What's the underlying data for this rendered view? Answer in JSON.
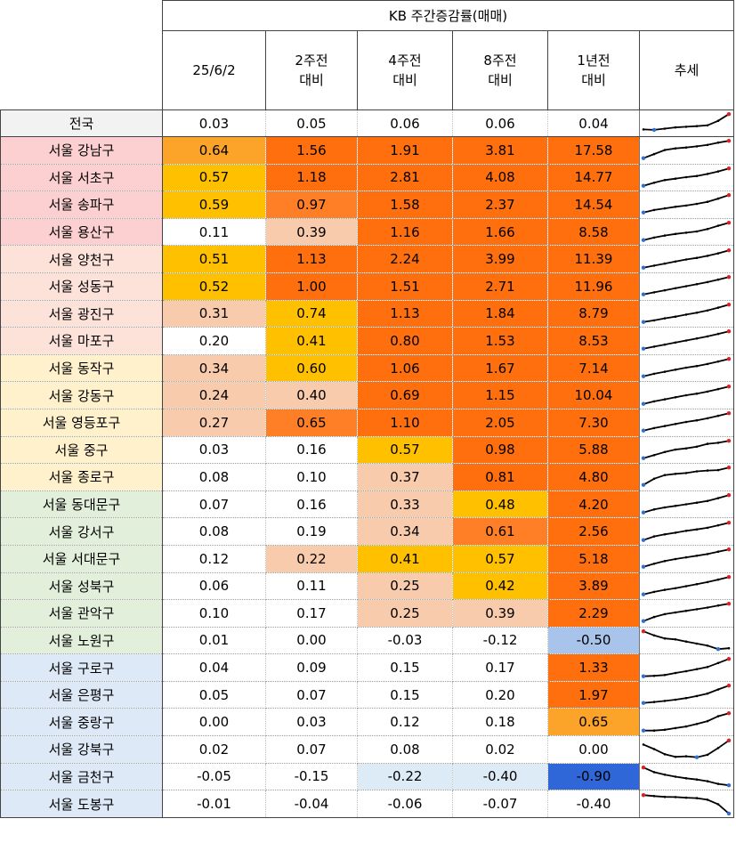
{
  "header": {
    "group_title": "KB 주간증감률(매매)",
    "columns": [
      {
        "line1": "25/6/2",
        "line2": ""
      },
      {
        "line1": "2주전",
        "line2": "대비"
      },
      {
        "line1": "4주전",
        "line2": "대비"
      },
      {
        "line1": "8주전",
        "line2": "대비"
      },
      {
        "line1": "1년전",
        "line2": "대비"
      },
      {
        "line1": "추세",
        "line2": ""
      }
    ]
  },
  "colors": {
    "group_red": "#fcd0d0",
    "group_pink": "#fde2da",
    "group_yellow": "#fff1cc",
    "group_green": "#e2efda",
    "group_blue": "#dde9f7",
    "national": "#f2f2f2",
    "sparkline": "#000000",
    "sparkline_max": "#e02020",
    "sparkline_min": "#2f6fd8"
  },
  "rows": [
    {
      "name": "전국",
      "group": "national",
      "values": [
        "0.03",
        "0.05",
        "0.06",
        "0.06",
        "0.04"
      ],
      "shade": [
        "c0",
        "c0",
        "c0",
        "c0",
        "c0"
      ],
      "trend": [
        0.2,
        0.18,
        0.24,
        0.3,
        0.33,
        0.36,
        0.4,
        0.62,
        0.95
      ]
    },
    {
      "name": "서울 강남구",
      "group": "red",
      "values": [
        "0.64",
        "1.56",
        "1.91",
        "3.81",
        "17.58"
      ],
      "shade": [
        "c3",
        "c5",
        "c5",
        "c5",
        "c5"
      ],
      "trend": [
        0.1,
        0.3,
        0.5,
        0.58,
        0.62,
        0.68,
        0.75,
        0.86,
        0.95
      ]
    },
    {
      "name": "서울 서초구",
      "group": "red",
      "values": [
        "0.57",
        "1.18",
        "2.81",
        "4.08",
        "14.77"
      ],
      "shade": [
        "c2",
        "c5",
        "c5",
        "c5",
        "c5"
      ],
      "trend": [
        0.1,
        0.25,
        0.38,
        0.45,
        0.52,
        0.58,
        0.68,
        0.8,
        0.95
      ]
    },
    {
      "name": "서울 송파구",
      "group": "red",
      "values": [
        "0.59",
        "0.97",
        "1.58",
        "2.37",
        "14.54"
      ],
      "shade": [
        "c2",
        "c4",
        "c5",
        "c5",
        "c5"
      ],
      "trend": [
        0.1,
        0.22,
        0.3,
        0.38,
        0.44,
        0.52,
        0.62,
        0.78,
        0.95
      ]
    },
    {
      "name": "서울 용산구",
      "group": "red",
      "values": [
        "0.11",
        "0.39",
        "1.16",
        "1.66",
        "8.58"
      ],
      "shade": [
        "c0",
        "c1",
        "c5",
        "c5",
        "c5"
      ],
      "trend": [
        0.1,
        0.22,
        0.32,
        0.4,
        0.46,
        0.52,
        0.64,
        0.8,
        0.95
      ]
    },
    {
      "name": "서울 양천구",
      "group": "pink",
      "values": [
        "0.51",
        "1.13",
        "2.24",
        "3.99",
        "11.39"
      ],
      "shade": [
        "c2",
        "c5",
        "c5",
        "c5",
        "c5"
      ],
      "trend": [
        0.1,
        0.2,
        0.3,
        0.4,
        0.5,
        0.58,
        0.68,
        0.8,
        0.95
      ]
    },
    {
      "name": "서울 성동구",
      "group": "pink",
      "values": [
        "0.52",
        "1.00",
        "1.51",
        "2.71",
        "11.96"
      ],
      "shade": [
        "c2",
        "c5",
        "c5",
        "c5",
        "c5"
      ],
      "trend": [
        0.1,
        0.2,
        0.3,
        0.4,
        0.5,
        0.6,
        0.7,
        0.82,
        0.95
      ]
    },
    {
      "name": "서울 광진구",
      "group": "pink",
      "values": [
        "0.31",
        "0.74",
        "1.13",
        "1.84",
        "8.79"
      ],
      "shade": [
        "c1",
        "c2",
        "c5",
        "c5",
        "c5"
      ],
      "trend": [
        0.1,
        0.18,
        0.28,
        0.36,
        0.46,
        0.55,
        0.66,
        0.8,
        0.95
      ]
    },
    {
      "name": "서울 마포구",
      "group": "pink",
      "values": [
        "0.20",
        "0.41",
        "0.80",
        "1.53",
        "8.53"
      ],
      "shade": [
        "c0",
        "c2",
        "c5",
        "c5",
        "c5"
      ],
      "trend": [
        0.1,
        0.2,
        0.3,
        0.4,
        0.5,
        0.6,
        0.7,
        0.82,
        0.95
      ]
    },
    {
      "name": "서울 동작구",
      "group": "yellow",
      "values": [
        "0.34",
        "0.60",
        "1.06",
        "1.67",
        "7.14"
      ],
      "shade": [
        "c1",
        "c2",
        "c5",
        "c5",
        "c5"
      ],
      "trend": [
        0.1,
        0.22,
        0.32,
        0.42,
        0.52,
        0.6,
        0.7,
        0.82,
        0.95
      ]
    },
    {
      "name": "서울 강동구",
      "group": "yellow",
      "values": [
        "0.24",
        "0.40",
        "0.69",
        "1.15",
        "10.04"
      ],
      "shade": [
        "c1",
        "c1",
        "c5",
        "c5",
        "c5"
      ],
      "trend": [
        0.1,
        0.22,
        0.32,
        0.42,
        0.52,
        0.6,
        0.7,
        0.82,
        0.95
      ]
    },
    {
      "name": "서울 영등포구",
      "group": "yellow",
      "values": [
        "0.27",
        "0.65",
        "1.10",
        "2.05",
        "7.30"
      ],
      "shade": [
        "c1",
        "c4",
        "c5",
        "c5",
        "c5"
      ],
      "trend": [
        0.1,
        0.22,
        0.32,
        0.42,
        0.52,
        0.6,
        0.7,
        0.82,
        0.95
      ]
    },
    {
      "name": "서울 중구",
      "group": "yellow",
      "values": [
        "0.03",
        "0.16",
        "0.57",
        "0.98",
        "5.88"
      ],
      "shade": [
        "c0",
        "c0",
        "c2",
        "c5",
        "c5"
      ],
      "trend": [
        0.1,
        0.25,
        0.4,
        0.52,
        0.58,
        0.66,
        0.8,
        0.85,
        0.95
      ]
    },
    {
      "name": "서울 종로구",
      "group": "yellow",
      "values": [
        "0.08",
        "0.10",
        "0.37",
        "0.81",
        "4.80"
      ],
      "shade": [
        "c0",
        "c0",
        "c1",
        "c5",
        "c5"
      ],
      "trend": [
        0.1,
        0.4,
        0.58,
        0.64,
        0.68,
        0.76,
        0.8,
        0.82,
        0.95
      ]
    },
    {
      "name": "서울 동대문구",
      "group": "green",
      "values": [
        "0.07",
        "0.16",
        "0.33",
        "0.48",
        "4.20"
      ],
      "shade": [
        "c0",
        "c0",
        "c1",
        "c2",
        "c5"
      ],
      "trend": [
        0.1,
        0.25,
        0.35,
        0.42,
        0.5,
        0.58,
        0.66,
        0.8,
        0.95
      ]
    },
    {
      "name": "서울 강서구",
      "group": "green",
      "values": [
        "0.08",
        "0.19",
        "0.34",
        "0.61",
        "2.56"
      ],
      "shade": [
        "c0",
        "c0",
        "c1",
        "c4",
        "c5"
      ],
      "trend": [
        0.1,
        0.28,
        0.38,
        0.46,
        0.55,
        0.62,
        0.7,
        0.82,
        0.95
      ]
    },
    {
      "name": "서울 서대문구",
      "group": "green",
      "values": [
        "0.12",
        "0.22",
        "0.41",
        "0.57",
        "5.18"
      ],
      "shade": [
        "c0",
        "c1",
        "c2",
        "c2",
        "c5"
      ],
      "trend": [
        0.1,
        0.25,
        0.38,
        0.48,
        0.56,
        0.64,
        0.72,
        0.84,
        0.95
      ]
    },
    {
      "name": "서울 성북구",
      "group": "green",
      "values": [
        "0.06",
        "0.11",
        "0.25",
        "0.42",
        "3.89"
      ],
      "shade": [
        "c0",
        "c0",
        "c1",
        "c2",
        "c5"
      ],
      "trend": [
        0.1,
        0.22,
        0.32,
        0.4,
        0.5,
        0.6,
        0.7,
        0.82,
        0.95
      ]
    },
    {
      "name": "서울 관악구",
      "group": "green",
      "values": [
        "0.10",
        "0.17",
        "0.25",
        "0.39",
        "2.29"
      ],
      "shade": [
        "c0",
        "c0",
        "c1",
        "c1",
        "c5"
      ],
      "trend": [
        0.1,
        0.3,
        0.44,
        0.52,
        0.6,
        0.68,
        0.76,
        0.86,
        0.95
      ]
    },
    {
      "name": "서울 노원구",
      "group": "green",
      "values": [
        "0.01",
        "0.00",
        "-0.03",
        "-0.12",
        "-0.50"
      ],
      "shade": [
        "c0",
        "c0",
        "c0",
        "c0",
        "cb2"
      ],
      "trend": [
        0.95,
        0.75,
        0.6,
        0.55,
        0.45,
        0.35,
        0.25,
        0.08,
        0.12
      ]
    },
    {
      "name": "서울 구로구",
      "group": "blue",
      "values": [
        "0.04",
        "0.09",
        "0.15",
        "0.17",
        "1.33"
      ],
      "shade": [
        "c0",
        "c0",
        "c0",
        "c0",
        "c5"
      ],
      "trend": [
        0.1,
        0.12,
        0.16,
        0.26,
        0.35,
        0.45,
        0.55,
        0.75,
        0.95
      ]
    },
    {
      "name": "서울 은평구",
      "group": "blue",
      "values": [
        "0.05",
        "0.07",
        "0.15",
        "0.20",
        "1.97"
      ],
      "shade": [
        "c0",
        "c0",
        "c0",
        "c0",
        "c5"
      ],
      "trend": [
        0.1,
        0.15,
        0.2,
        0.26,
        0.34,
        0.44,
        0.56,
        0.76,
        0.95
      ]
    },
    {
      "name": "서울 중랑구",
      "group": "blue",
      "values": [
        "0.00",
        "0.03",
        "0.12",
        "0.18",
        "0.65"
      ],
      "shade": [
        "c0",
        "c0",
        "c0",
        "c0",
        "c3"
      ],
      "trend": [
        0.1,
        0.1,
        0.14,
        0.22,
        0.3,
        0.42,
        0.56,
        0.8,
        0.95
      ]
    },
    {
      "name": "서울 강북구",
      "group": "blue",
      "values": [
        "0.02",
        "0.07",
        "0.08",
        "0.02",
        "0.00"
      ],
      "shade": [
        "c0",
        "c0",
        "c0",
        "c0",
        "c0"
      ],
      "trend": [
        0.72,
        0.5,
        0.25,
        0.12,
        0.15,
        0.1,
        0.22,
        0.55,
        0.92
      ]
    },
    {
      "name": "서울 금천구",
      "group": "blue",
      "values": [
        "-0.05",
        "-0.15",
        "-0.22",
        "-0.40",
        "-0.90"
      ],
      "shade": [
        "c0",
        "c0",
        "cb1",
        "cb1",
        "cb3"
      ],
      "trend": [
        0.95,
        0.72,
        0.6,
        0.5,
        0.42,
        0.36,
        0.28,
        0.15,
        0.08
      ]
    },
    {
      "name": "서울 도봉구",
      "group": "blue",
      "values": [
        "-0.01",
        "-0.04",
        "-0.06",
        "-0.07",
        "-0.40"
      ],
      "shade": [
        "c0",
        "c0",
        "c0",
        "c0",
        "c0"
      ],
      "trend": [
        0.95,
        0.9,
        0.86,
        0.85,
        0.82,
        0.8,
        0.72,
        0.5,
        0.05
      ]
    }
  ]
}
